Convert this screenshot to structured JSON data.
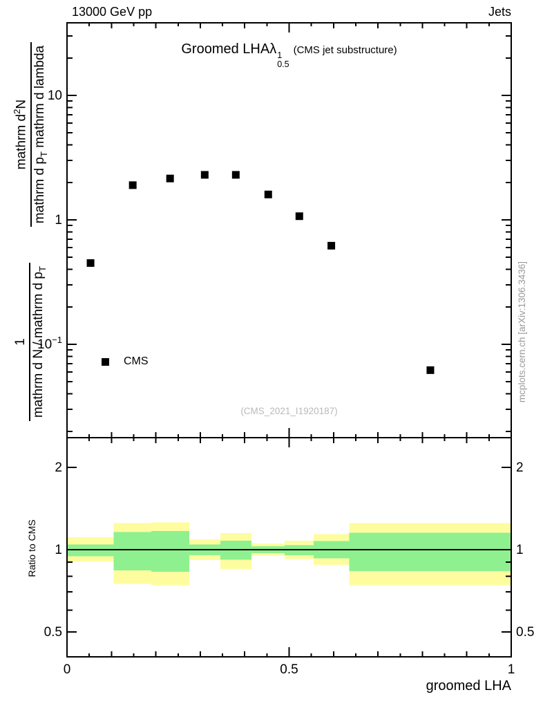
{
  "header": {
    "left": "13000 GeV pp",
    "right": "Jets"
  },
  "title": {
    "main": "Groomed LHA",
    "symbol": "λ",
    "sup": "1",
    "sub": "0.5",
    "paren": "(CMS jet substructure)"
  },
  "y_axis_title": {
    "upper_num_a": "mathrm d",
    "upper_num_sup": "2",
    "upper_num_b": "N",
    "upper_den_a": "mathrm d p",
    "upper_den_sub": "T",
    "upper_den_b": " mathrm d lambda",
    "lower_num": "1",
    "lower_den_a": "mathrm d N / mathrm d p",
    "lower_den_sub": "T"
  },
  "legend": {
    "label": "CMS"
  },
  "watermark": "(CMS_2021_I1920187)",
  "side_note": "mcplots.cern.ch [arXiv:1306.3436]",
  "ratio_axis_title": "Ratio to CMS",
  "chart_data": {
    "type": "scatter",
    "xlabel": "groomed LHA",
    "xlim": [
      0,
      1
    ],
    "xticks": [
      {
        "v": 0,
        "label": "0"
      },
      {
        "v": 0.5,
        "label": "0.5"
      },
      {
        "v": 1,
        "label": "1"
      }
    ],
    "main_panel": {
      "yscale": "log",
      "ylim": [
        0.018,
        38
      ],
      "yticks": [
        {
          "v": 10,
          "label": "10"
        },
        {
          "v": 1,
          "label": "1"
        },
        {
          "v": 0.1,
          "label": "10",
          "sup": "−1"
        }
      ],
      "series_label": "CMS",
      "marker": "filled-square",
      "marker_color": "#000000",
      "points": [
        [
          0.053,
          0.45
        ],
        [
          0.148,
          1.9
        ],
        [
          0.232,
          2.15
        ],
        [
          0.31,
          2.3
        ],
        [
          0.38,
          2.3
        ],
        [
          0.453,
          1.6
        ],
        [
          0.523,
          1.07
        ],
        [
          0.595,
          0.62
        ],
        [
          0.818,
          0.062
        ]
      ]
    },
    "ratio_panel": {
      "yscale": "log",
      "ylim": [
        0.405,
        2.57
      ],
      "yticks": [
        {
          "v": 2,
          "label": "2"
        },
        {
          "v": 1,
          "label": "1"
        },
        {
          "v": 0.5,
          "label": "0.5"
        }
      ],
      "baseline": 1.0,
      "band_colors": {
        "yellow": "#fdfda0",
        "green": "#8ff08f"
      },
      "bands": [
        {
          "x": [
            0,
            0.105
          ],
          "yellow": [
            0.905,
            1.11
          ],
          "green": [
            0.945,
            1.045
          ]
        },
        {
          "x": [
            0.105,
            0.19
          ],
          "yellow": [
            0.75,
            1.25
          ],
          "green": [
            0.84,
            1.16
          ]
        },
        {
          "x": [
            0.19,
            0.275
          ],
          "yellow": [
            0.74,
            1.26
          ],
          "green": [
            0.83,
            1.17
          ]
        },
        {
          "x": [
            0.275,
            0.345
          ],
          "yellow": [
            0.915,
            1.09
          ],
          "green": [
            0.955,
            1.045
          ]
        },
        {
          "x": [
            0.345,
            0.415
          ],
          "yellow": [
            0.85,
            1.15
          ],
          "green": [
            0.92,
            1.08
          ]
        },
        {
          "x": [
            0.415,
            0.49
          ],
          "yellow": [
            0.95,
            1.055
          ],
          "green": [
            0.97,
            1.03
          ]
        },
        {
          "x": [
            0.49,
            0.555
          ],
          "yellow": [
            0.925,
            1.08
          ],
          "green": [
            0.955,
            1.04
          ]
        },
        {
          "x": [
            0.555,
            0.635
          ],
          "yellow": [
            0.88,
            1.14
          ],
          "green": [
            0.93,
            1.075
          ]
        },
        {
          "x": [
            0.635,
            1.0
          ],
          "yellow": [
            0.74,
            1.25
          ],
          "green": [
            0.835,
            1.155
          ]
        }
      ]
    }
  }
}
